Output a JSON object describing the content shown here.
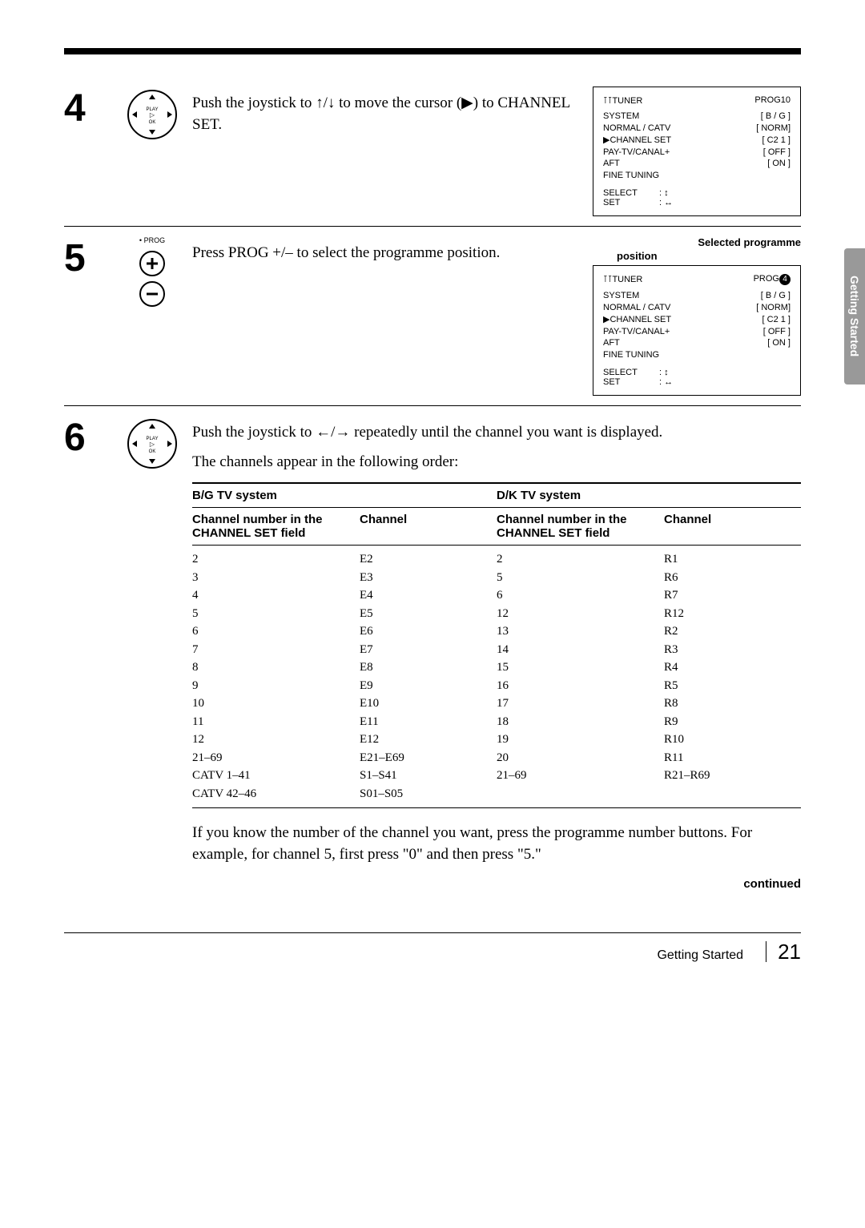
{
  "sidetab": "Getting Started",
  "steps": {
    "s4": {
      "num": "4",
      "text": "Push the joystick to ↑/↓ to move the cursor (▶) to CHANNEL SET.",
      "osd": {
        "title": "TUNER",
        "prog": "PROG10",
        "rows": [
          {
            "l": "SYSTEM",
            "r": "[ B / G  ]"
          },
          {
            "l": "NORMAL / CATV",
            "r": "[ NORM]"
          },
          {
            "l": "▶CHANNEL SET",
            "r": "[ C2 1   ]"
          },
          {
            "l": "PAY-TV/CANAL+",
            "r": "[ OFF    ]"
          },
          {
            "l": "AFT",
            "r": "[ ON      ]"
          },
          {
            "l": "FINE TUNING",
            "r": ""
          }
        ],
        "select": "SELECT",
        "set": "SET"
      }
    },
    "s5": {
      "num": "5",
      "icon_label": "• PROG",
      "text": "Press PROG +/– to select the programme position.",
      "osd_label": "Selected programme",
      "osd_sublabel": "position",
      "osd": {
        "title": "TUNER",
        "prog_prefix": "PROG",
        "prog_num": "4",
        "rows": [
          {
            "l": "SYSTEM",
            "r": "[ B / G  ]"
          },
          {
            "l": "NORMAL / CATV",
            "r": "[ NORM]"
          },
          {
            "l": "▶CHANNEL SET",
            "r": "[ C2 1   ]"
          },
          {
            "l": "PAY-TV/CANAL+",
            "r": "[ OFF    ]"
          },
          {
            "l": "AFT",
            "r": "[ ON      ]"
          },
          {
            "l": "FINE TUNING",
            "r": ""
          }
        ],
        "select": "SELECT",
        "set": "SET"
      }
    },
    "s6": {
      "num": "6",
      "text1": "Push the joystick to ←/→ repeatedly until the channel you want is displayed.",
      "text2": "The channels appear in the following order:",
      "sys_bg": "B/G TV system",
      "sys_dk": "D/K TV system",
      "col_a": "Channel number in the CHANNEL SET field",
      "col_b": "Channel",
      "rows_bg": [
        [
          "2",
          "E2"
        ],
        [
          "3",
          "E3"
        ],
        [
          "4",
          "E4"
        ],
        [
          "5",
          "E5"
        ],
        [
          "6",
          "E6"
        ],
        [
          "7",
          "E7"
        ],
        [
          "8",
          "E8"
        ],
        [
          "9",
          "E9"
        ],
        [
          "10",
          "E10"
        ],
        [
          "11",
          "E11"
        ],
        [
          "12",
          "E12"
        ],
        [
          "21–69",
          "E21–E69"
        ],
        [
          "CATV 1–41",
          "S1–S41"
        ],
        [
          "CATV 42–46",
          "S01–S05"
        ]
      ],
      "rows_dk": [
        [
          "2",
          "R1"
        ],
        [
          "5",
          "R6"
        ],
        [
          "6",
          "R7"
        ],
        [
          "12",
          "R12"
        ],
        [
          "13",
          "R2"
        ],
        [
          "14",
          "R3"
        ],
        [
          "15",
          "R4"
        ],
        [
          "16",
          "R5"
        ],
        [
          "17",
          "R8"
        ],
        [
          "18",
          "R9"
        ],
        [
          "19",
          "R10"
        ],
        [
          "20",
          "R11"
        ],
        [
          "21–69",
          "R21–R69"
        ],
        [
          "",
          ""
        ]
      ],
      "note": "If you know the number of the channel you want, press the programme number buttons.  For example, for channel 5, first press \"0\" and then press \"5.\"",
      "continued": "continued"
    }
  },
  "footer": {
    "label": "Getting Started",
    "page": "21"
  }
}
